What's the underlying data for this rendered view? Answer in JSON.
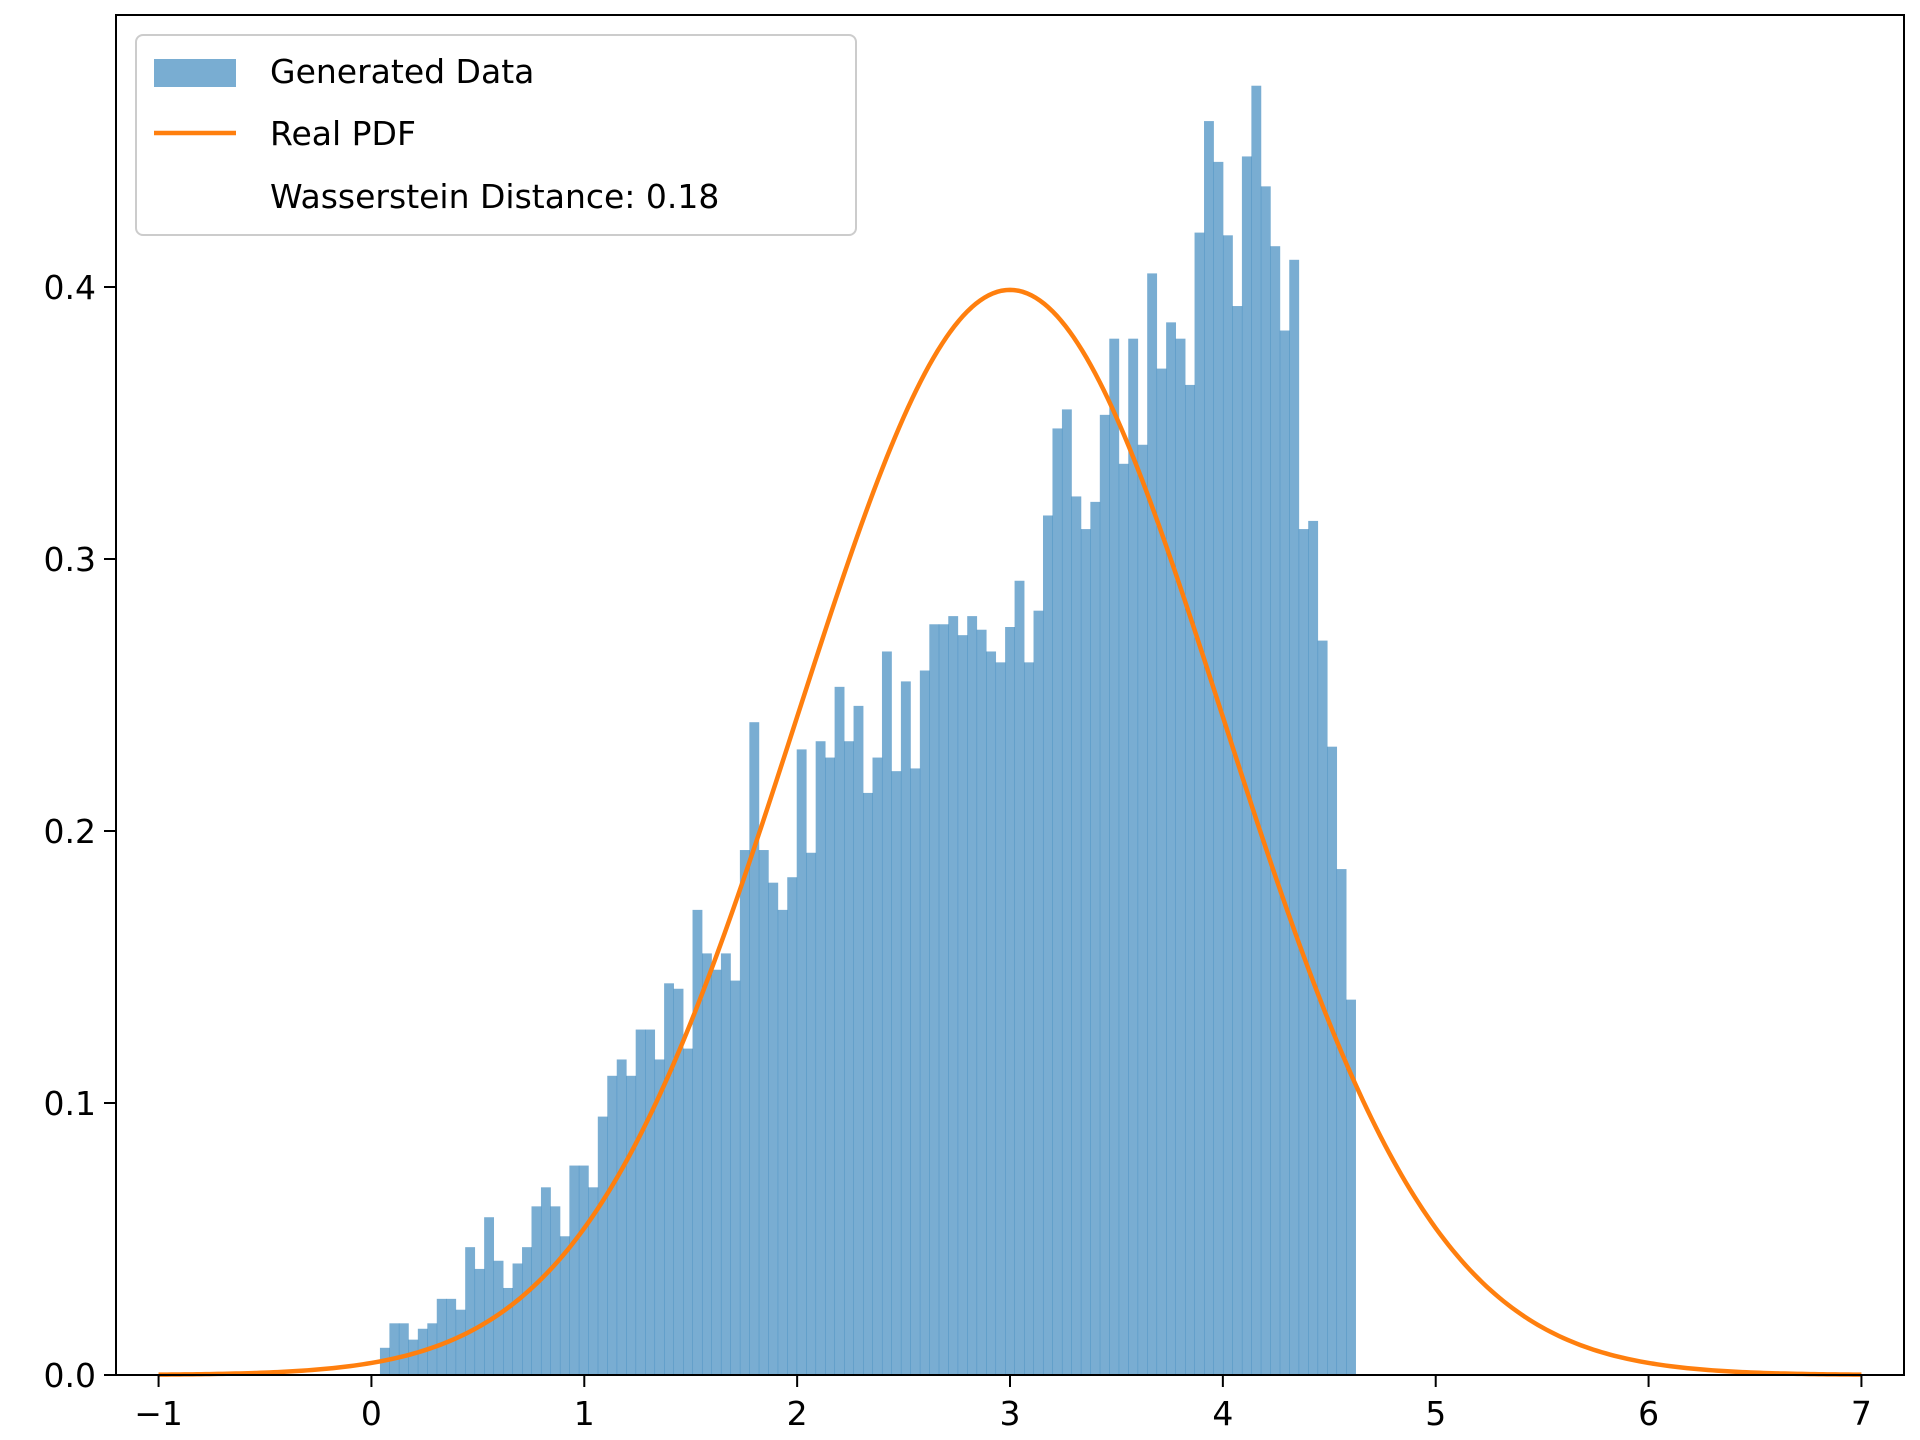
{
  "chart_data": {
    "type": "bar",
    "title": "",
    "xlabel": "",
    "ylabel": "",
    "xlim": [
      -1.2,
      7.2
    ],
    "ylim": [
      0,
      0.5
    ],
    "grid": false,
    "legend_position": "top-left",
    "x_ticks": [
      -1,
      0,
      1,
      2,
      3,
      4,
      5,
      6,
      7
    ],
    "x_tick_labels": [
      "−1",
      "0",
      "1",
      "2",
      "3",
      "4",
      "5",
      "6",
      "7"
    ],
    "y_ticks": [
      0.0,
      0.1,
      0.2,
      0.3,
      0.4
    ],
    "y_tick_labels": [
      "0.0",
      "0.1",
      "0.2",
      "0.3",
      "0.4"
    ],
    "series": [
      {
        "name": "Generated Data",
        "kind": "histogram",
        "color": "#1f77b4",
        "alpha": 0.6,
        "bin_start": 0.04,
        "bin_width": 0.0445,
        "values": [
          0.01,
          0.019,
          0.019,
          0.013,
          0.017,
          0.019,
          0.028,
          0.028,
          0.024,
          0.047,
          0.039,
          0.058,
          0.042,
          0.032,
          0.041,
          0.047,
          0.062,
          0.069,
          0.062,
          0.051,
          0.077,
          0.077,
          0.069,
          0.095,
          0.11,
          0.116,
          0.11,
          0.127,
          0.127,
          0.116,
          0.144,
          0.142,
          0.12,
          0.171,
          0.155,
          0.149,
          0.155,
          0.145,
          0.193,
          0.24,
          0.193,
          0.181,
          0.171,
          0.183,
          0.23,
          0.192,
          0.233,
          0.227,
          0.253,
          0.233,
          0.246,
          0.214,
          0.227,
          0.266,
          0.222,
          0.255,
          0.223,
          0.259,
          0.276,
          0.276,
          0.279,
          0.272,
          0.279,
          0.274,
          0.266,
          0.262,
          0.275,
          0.292,
          0.262,
          0.281,
          0.316,
          0.348,
          0.355,
          0.323,
          0.311,
          0.321,
          0.353,
          0.381,
          0.335,
          0.381,
          0.342,
          0.405,
          0.37,
          0.387,
          0.381,
          0.364,
          0.42,
          0.461,
          0.446,
          0.419,
          0.393,
          0.448,
          0.474,
          0.437,
          0.415,
          0.384,
          0.41,
          0.311,
          0.314,
          0.27,
          0.231,
          0.186,
          0.138
        ]
      },
      {
        "name": "Real PDF",
        "kind": "line",
        "color": "#ff7f0e",
        "mean": 3,
        "std": 1,
        "x_range": [
          -1,
          7
        ]
      }
    ],
    "annotations": [
      "Wasserstein Distance: 0.18"
    ]
  }
}
